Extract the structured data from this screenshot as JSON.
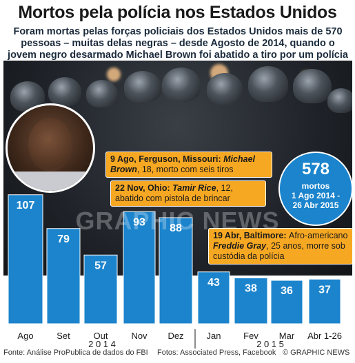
{
  "header": {
    "title": "Mortos pela polícia nos Estados Unidos",
    "subtitle": "Foram mortas pelas forças policiais dos Estados Unidos mais de 570 pessoas – muitas delas negras – desde Agosto de 2014, quando o jovem negro desarmado Michael Brown foi abatido a tiro por um polícia branco"
  },
  "callouts": [
    {
      "prefix": "9 Ago, Ferguson, Missouri: ",
      "name": "Michael Brown",
      "suffix": ", 18, morto com seis tiros"
    },
    {
      "prefix": "22 Nov, Ohio: ",
      "name": "Tamir Rice",
      "suffix": ", 12, abatido com pistola de brincar"
    },
    {
      "prefix": "19 Abr, Baltimore: ",
      "text1": "Afro-americano ",
      "name": "Freddie Gray",
      "suffix": ", 25 anos, morre sob custódia da polícia"
    }
  ],
  "total": {
    "number": "578",
    "label1": "mortos",
    "label2": "1 Ago 2014 -",
    "label3": "26 Abr 2015"
  },
  "watermark": "GRAPHIC NEWS",
  "chart_data": {
    "type": "bar",
    "categories": [
      "Ago",
      "Set",
      "Out",
      "Nov",
      "Dez",
      "Jan",
      "Fev",
      "Mar",
      "Abr 1-26"
    ],
    "values": [
      107,
      79,
      57,
      93,
      88,
      43,
      38,
      36,
      37
    ],
    "year_labels": [
      "2 0 1 4",
      "2 0 1 5"
    ],
    "bar_color": "#1b84cc",
    "ylim": [
      0,
      110
    ],
    "title": "",
    "xlabel": "",
    "ylabel": ""
  },
  "footer": {
    "source": "Fonte: Análise ProPublica de dados do FBI",
    "photos": "Fotos: Associated Press, Facebook",
    "credit": "© GRAPHIC NEWS"
  }
}
